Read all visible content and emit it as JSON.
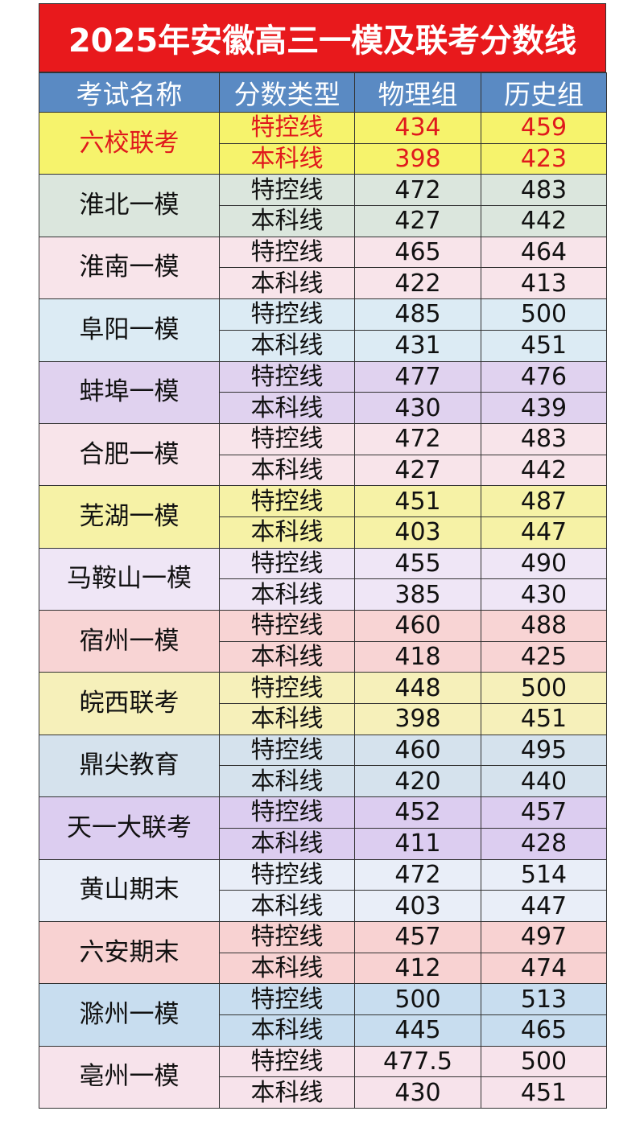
{
  "title": "2025年安徽高三一模及联考分数线",
  "table": {
    "headers": [
      "考试名称",
      "分数类型",
      "物理组",
      "历史组"
    ],
    "groups": [
      {
        "name": "六校联考",
        "color": "#f6f36c",
        "text_color": "#e0191c",
        "rows": [
          {
            "type": "特控线",
            "physics": 434,
            "history": 459
          },
          {
            "type": "本科线",
            "physics": 398,
            "history": 423
          }
        ]
      },
      {
        "name": "淮北一模",
        "color": "#dbe6dd",
        "rows": [
          {
            "type": "特控线",
            "physics": 472,
            "history": 483
          },
          {
            "type": "本科线",
            "physics": 427,
            "history": 442
          }
        ]
      },
      {
        "name": "淮南一模",
        "color": "#f8e4ea",
        "rows": [
          {
            "type": "特控线",
            "physics": 465,
            "history": 464
          },
          {
            "type": "本科线",
            "physics": 422,
            "history": 413
          }
        ]
      },
      {
        "name": "阜阳一模",
        "color": "#dcebf4",
        "rows": [
          {
            "type": "特控线",
            "physics": 485,
            "history": 500
          },
          {
            "type": "本科线",
            "physics": 431,
            "history": 451
          }
        ]
      },
      {
        "name": "蚌埠一模",
        "color": "#e0d2ef",
        "rows": [
          {
            "type": "特控线",
            "physics": 477,
            "history": 476
          },
          {
            "type": "本科线",
            "physics": 430,
            "history": 439
          }
        ]
      },
      {
        "name": "合肥一模",
        "color": "#f8e4ea",
        "rows": [
          {
            "type": "特控线",
            "physics": 472,
            "history": 483
          },
          {
            "type": "本科线",
            "physics": 427,
            "history": 442
          }
        ]
      },
      {
        "name": "芜湖一模",
        "color": "#f6f2a6",
        "rows": [
          {
            "type": "特控线",
            "physics": 451,
            "history": 487
          },
          {
            "type": "本科线",
            "physics": 403,
            "history": 447
          }
        ]
      },
      {
        "name": "马鞍山一模",
        "color": "#efe6f6",
        "rows": [
          {
            "type": "特控线",
            "physics": 455,
            "history": 490
          },
          {
            "type": "本科线",
            "physics": 385,
            "history": 430
          }
        ]
      },
      {
        "name": "宿州一模",
        "color": "#f8d4d4",
        "rows": [
          {
            "type": "特控线",
            "physics": 460,
            "history": 488
          },
          {
            "type": "本科线",
            "physics": 418,
            "history": 425
          }
        ]
      },
      {
        "name": "皖西联考",
        "color": "#f6f0ba",
        "rows": [
          {
            "type": "特控线",
            "physics": 448,
            "history": 500
          },
          {
            "type": "本科线",
            "physics": 398,
            "history": 451
          }
        ]
      },
      {
        "name": "鼎尖教育",
        "color": "#d5e2ed",
        "rows": [
          {
            "type": "特控线",
            "physics": 460,
            "history": 495
          },
          {
            "type": "本科线",
            "physics": 420,
            "history": 440
          }
        ]
      },
      {
        "name": "天一大联考",
        "color": "#dccdf0",
        "rows": [
          {
            "type": "特控线",
            "physics": 452,
            "history": 457
          },
          {
            "type": "本科线",
            "physics": 411,
            "history": 428
          }
        ]
      },
      {
        "name": "黄山期末",
        "color": "#e9eef8",
        "rows": [
          {
            "type": "特控线",
            "physics": 472,
            "history": 514
          },
          {
            "type": "本科线",
            "physics": 403,
            "history": 447
          }
        ]
      },
      {
        "name": "六安期末",
        "color": "#f8d2d2",
        "rows": [
          {
            "type": "特控线",
            "physics": 457,
            "history": 497
          },
          {
            "type": "本科线",
            "physics": 412,
            "history": 474
          }
        ]
      },
      {
        "name": "滁州一模",
        "color": "#c8ddef",
        "rows": [
          {
            "type": "特控线",
            "physics": 500,
            "history": 513
          },
          {
            "type": "本科线",
            "physics": 445,
            "history": 465
          }
        ]
      },
      {
        "name": "亳州一模",
        "color": "#f7e3eb",
        "rows": [
          {
            "type": "特控线",
            "physics": 477.5,
            "history": 500
          },
          {
            "type": "本科线",
            "physics": 430,
            "history": 451
          }
        ]
      }
    ]
  }
}
